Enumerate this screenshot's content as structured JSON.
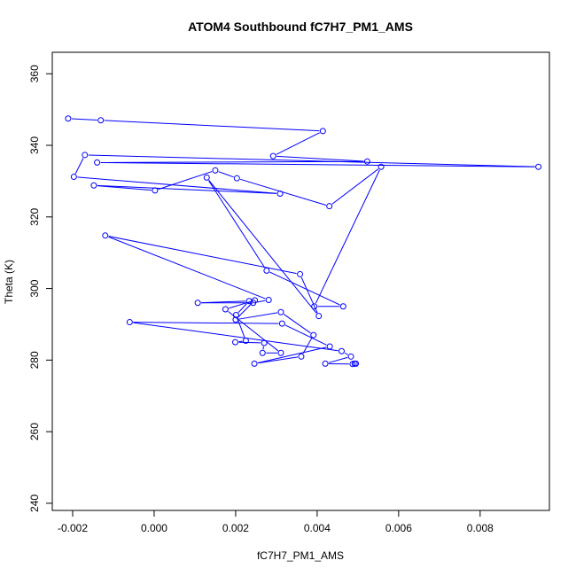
{
  "chart_data": {
    "type": "line",
    "title": "ATOM4 Southbound fC7H7_PM1_AMS",
    "xlabel": "fC7H7_PM1_AMS",
    "ylabel": "Theta (K)",
    "xlim": [
      -0.0025,
      0.0097
    ],
    "ylim": [
      238.0,
      366.0
    ],
    "xticks": [
      -0.002,
      0.0,
      0.002,
      0.004,
      0.006,
      0.008
    ],
    "xtick_labels": [
      "-0.002",
      "0.000",
      "0.002",
      "0.004",
      "0.006",
      "0.008"
    ],
    "yticks": [
      240,
      260,
      280,
      300,
      320,
      340,
      360
    ],
    "ytick_labels": [
      "240",
      "260",
      "280",
      "300",
      "320",
      "340",
      "360"
    ],
    "grid": false,
    "legend": "none",
    "line_color": "#0000ff",
    "marker": "open-circle",
    "series": [
      {
        "x": [
          -0.00211,
          -0.00131,
          0.00414,
          0.00292,
          0.00523,
          -0.0014,
          0.00943,
          -0.0017,
          -0.00197,
          0.00309,
          -0.00148,
          2e-05,
          0.0015,
          0.00203,
          0.0043,
          0.00557,
          0.00393,
          0.00464,
          0.00276,
          0.00129,
          0.00404,
          0.00358,
          -0.0012,
          0.00281,
          0.00243,
          0.00107,
          0.00233,
          0.00201,
          0.00225,
          0.00199,
          0.0027,
          0.00266,
          0.00311,
          0.00175,
          0.00247,
          0.002,
          0.00311,
          0.00391,
          0.00361,
          0.00246,
          0.00431,
          0.00314,
          -0.0006,
          0.0046,
          0.00483,
          0.0042,
          0.00487,
          0.00495,
          0.00492
        ],
        "y": [
          347.5,
          347.0,
          344.0,
          337.0,
          335.5,
          335.2,
          334.0,
          337.3,
          331.2,
          326.5,
          328.8,
          327.4,
          333.0,
          330.8,
          323.0,
          334.0,
          295.0,
          295.0,
          305.0,
          331.0,
          292.3,
          304.0,
          314.8,
          296.8,
          296.0,
          296.0,
          296.5,
          292.6,
          285.4,
          285.0,
          284.8,
          282.0,
          282.0,
          294.2,
          296.7,
          291.3,
          293.4,
          287.0,
          281.0,
          279.0,
          283.8,
          290.2,
          290.6,
          282.5,
          281.0,
          279.0,
          278.9,
          279.0,
          279.0
        ]
      }
    ]
  }
}
